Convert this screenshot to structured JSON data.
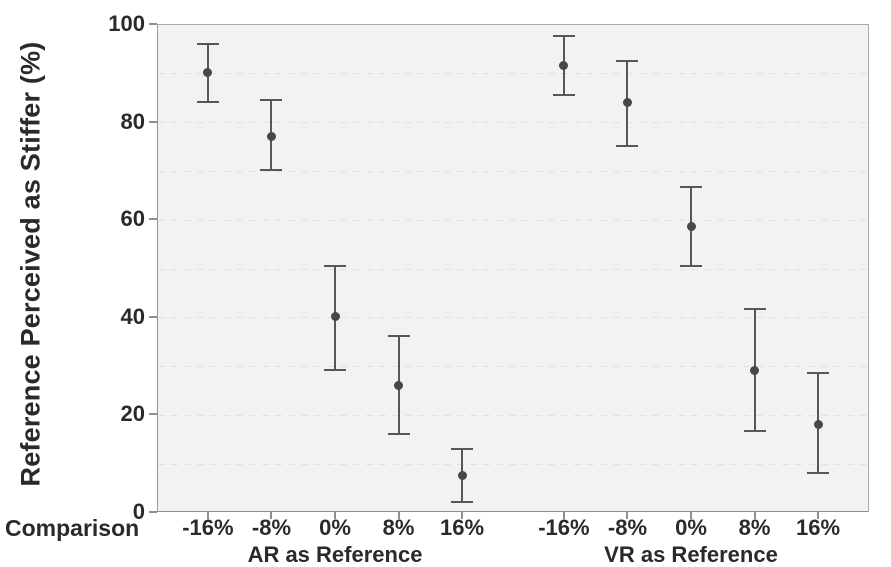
{
  "chart_data": {
    "type": "scatter",
    "subtype": "point-estimates-with-error-bars",
    "title": "",
    "ylabel": "Reference Perceived as Stiffer (%)",
    "xlabel": "Comparison",
    "ylim": [
      0,
      100
    ],
    "yticks": [
      0,
      20,
      40,
      60,
      80,
      100
    ],
    "grid": {
      "show": true,
      "interval": 10,
      "style": "dashed"
    },
    "legend_position": "none",
    "categories": [
      "-16%",
      "-8%",
      "0%",
      "8%",
      "16%"
    ],
    "series": [
      {
        "name": "AR as Reference",
        "means": [
          90,
          77,
          40,
          26,
          7.5
        ],
        "ci_low": [
          84,
          70,
          29,
          16,
          2
        ],
        "ci_high": [
          96,
          84.5,
          50.5,
          36,
          13
        ]
      },
      {
        "name": "VR as Reference",
        "means": [
          91.5,
          84,
          58.5,
          29,
          18
        ],
        "ci_low": [
          85.5,
          75,
          50.5,
          16.5,
          8
        ],
        "ci_high": [
          97.5,
          92.5,
          66.5,
          41.5,
          28.5
        ]
      }
    ],
    "colors": {
      "point": "#474747",
      "error_bar": "#575757",
      "plot_background": "#f2f2f2",
      "gridline": "#e2e2e2",
      "axis": "#8f8f8f",
      "text": "#2a2a2a"
    }
  }
}
